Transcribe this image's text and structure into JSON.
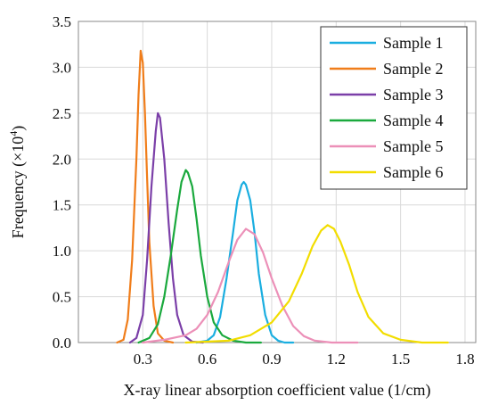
{
  "chart_data": {
    "type": "line",
    "title": "",
    "xlabel": "X-ray linear absorption coefficient value (1/cm)",
    "ylabel_main": "Frequency (×10",
    "ylabel_exp": "4",
    "ylabel_close": ")",
    "xlim": [
      0.0,
      1.85
    ],
    "ylim": [
      0.0,
      3.5
    ],
    "xticks": [
      "0.3",
      "0.6",
      "0.9",
      "1.2",
      "1.5",
      "1.8"
    ],
    "xtick_values": [
      0.3,
      0.6,
      0.9,
      1.2,
      1.5,
      1.8
    ],
    "yticks": [
      "0.0",
      "0.5",
      "1.0",
      "1.5",
      "2.0",
      "2.5",
      "3.0",
      "3.5"
    ],
    "ytick_values": [
      0.0,
      0.5,
      1.0,
      1.5,
      2.0,
      2.5,
      3.0,
      3.5
    ],
    "grid": true,
    "legend_position": "top-right",
    "series": [
      {
        "name": "Sample 1",
        "color": "#1aaee0",
        "x": [
          0.55,
          0.6,
          0.63,
          0.66,
          0.69,
          0.72,
          0.74,
          0.76,
          0.77,
          0.78,
          0.8,
          0.82,
          0.84,
          0.87,
          0.9,
          0.93,
          0.96,
          1.0
        ],
        "y": [
          0.0,
          0.02,
          0.08,
          0.28,
          0.7,
          1.2,
          1.55,
          1.72,
          1.75,
          1.72,
          1.55,
          1.2,
          0.75,
          0.3,
          0.08,
          0.02,
          0.0,
          0.0
        ]
      },
      {
        "name": "Sample 2",
        "color": "#f07d1a",
        "x": [
          0.18,
          0.21,
          0.23,
          0.25,
          0.27,
          0.28,
          0.29,
          0.3,
          0.31,
          0.32,
          0.33,
          0.35,
          0.37,
          0.4,
          0.44
        ],
        "y": [
          0.0,
          0.03,
          0.25,
          0.9,
          2.0,
          2.7,
          3.18,
          3.05,
          2.5,
          1.8,
          1.1,
          0.4,
          0.1,
          0.02,
          0.0
        ]
      },
      {
        "name": "Sample 3",
        "color": "#7b3fa8",
        "x": [
          0.24,
          0.27,
          0.3,
          0.32,
          0.34,
          0.36,
          0.37,
          0.38,
          0.4,
          0.42,
          0.44,
          0.46,
          0.49,
          0.53,
          0.58
        ],
        "y": [
          0.0,
          0.05,
          0.3,
          0.9,
          1.7,
          2.3,
          2.5,
          2.45,
          2.0,
          1.3,
          0.7,
          0.3,
          0.08,
          0.01,
          0.0
        ]
      },
      {
        "name": "Sample 4",
        "color": "#1aa93d",
        "x": [
          0.28,
          0.33,
          0.37,
          0.4,
          0.43,
          0.46,
          0.48,
          0.5,
          0.51,
          0.53,
          0.55,
          0.57,
          0.6,
          0.63,
          0.67,
          0.72,
          0.78,
          0.85
        ],
        "y": [
          0.0,
          0.05,
          0.2,
          0.5,
          0.95,
          1.45,
          1.75,
          1.88,
          1.85,
          1.7,
          1.35,
          0.95,
          0.5,
          0.22,
          0.08,
          0.02,
          0.0,
          0.0
        ]
      },
      {
        "name": "Sample 5",
        "color": "#ec90b8",
        "x": [
          0.3,
          0.4,
          0.5,
          0.55,
          0.6,
          0.65,
          0.7,
          0.74,
          0.78,
          0.82,
          0.86,
          0.9,
          0.95,
          1.0,
          1.05,
          1.1,
          1.18,
          1.3
        ],
        "y": [
          0.0,
          0.03,
          0.08,
          0.15,
          0.3,
          0.55,
          0.88,
          1.12,
          1.24,
          1.18,
          0.98,
          0.7,
          0.4,
          0.18,
          0.07,
          0.02,
          0.0,
          0.0
        ]
      },
      {
        "name": "Sample 6",
        "color": "#f2dd00",
        "x": [
          0.5,
          0.7,
          0.8,
          0.9,
          0.98,
          1.04,
          1.09,
          1.13,
          1.16,
          1.19,
          1.22,
          1.26,
          1.3,
          1.35,
          1.42,
          1.5,
          1.6,
          1.72
        ],
        "y": [
          0.0,
          0.02,
          0.08,
          0.22,
          0.45,
          0.75,
          1.05,
          1.22,
          1.28,
          1.24,
          1.1,
          0.85,
          0.55,
          0.28,
          0.1,
          0.03,
          0.0,
          0.0
        ]
      }
    ]
  }
}
